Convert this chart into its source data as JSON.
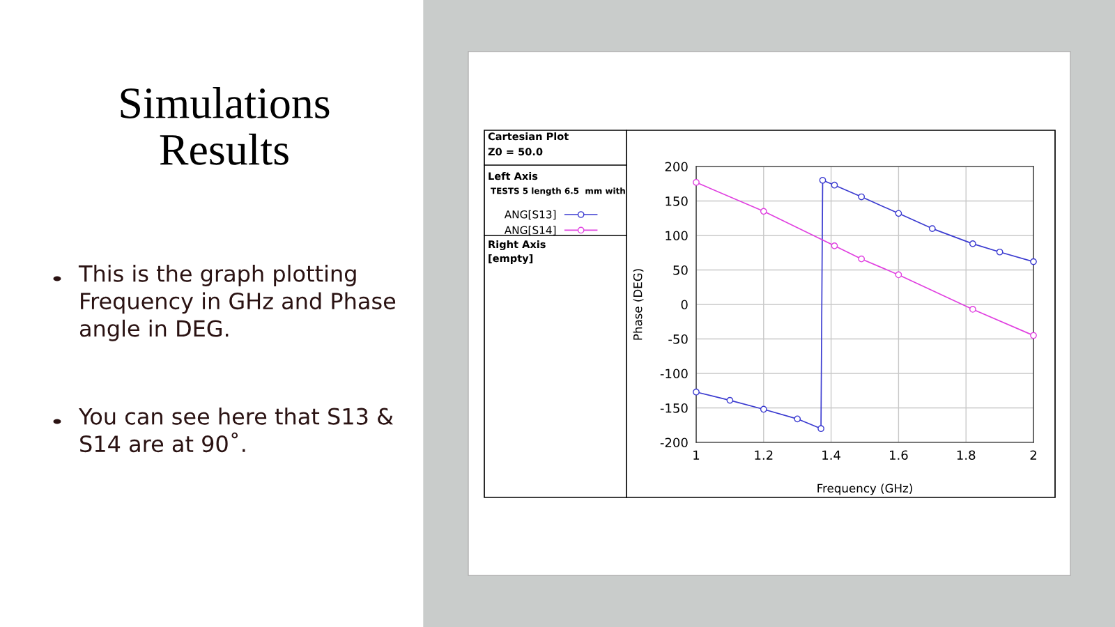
{
  "chart_data": {
    "type": "line",
    "title": "Simulations Results",
    "xlabel": "Frequency (GHz)",
    "ylabel": "Phase (DEG)",
    "series": [
      {
        "name": "ANG[S13]",
        "color": "#3a3ad0",
        "x": [
          1,
          1.1,
          1.2,
          1.3,
          1.37,
          1.375,
          1.41,
          1.49,
          1.6,
          1.7,
          1.82,
          1.9,
          2
        ],
        "values": [
          -127,
          -139,
          -152,
          -166,
          -180,
          180,
          173,
          156,
          132,
          110,
          88,
          76,
          62
        ]
      },
      {
        "name": "ANG[S14]",
        "color": "#e040e0",
        "x": [
          1,
          1.2,
          1.41,
          1.49,
          1.6,
          1.82,
          2
        ],
        "values": [
          177,
          135,
          85,
          66,
          43,
          -7,
          -45
        ]
      }
    ],
    "xlim": [
      1,
      2
    ],
    "xticks": [
      1,
      1.2,
      1.4,
      1.6,
      1.8,
      2
    ],
    "ylim": [
      -200,
      200
    ],
    "yticks": [
      -200,
      -150,
      -100,
      -50,
      0,
      50,
      100,
      150,
      200
    ],
    "grid": true,
    "legend": "left",
    "marker": "circle",
    "line_style": "solid",
    "annotations": [
      "This is the graph plotting Frequency in GHz and Phase angle in DEG.",
      "You can see here that S13 & S14 are at 90˚.",
      "Cartesian Plot",
      "Z0 = 50.0",
      "Left Axis",
      "TESTS 5 length 6.5  mm with",
      "Right Axis",
      "[empty]"
    ]
  }
}
